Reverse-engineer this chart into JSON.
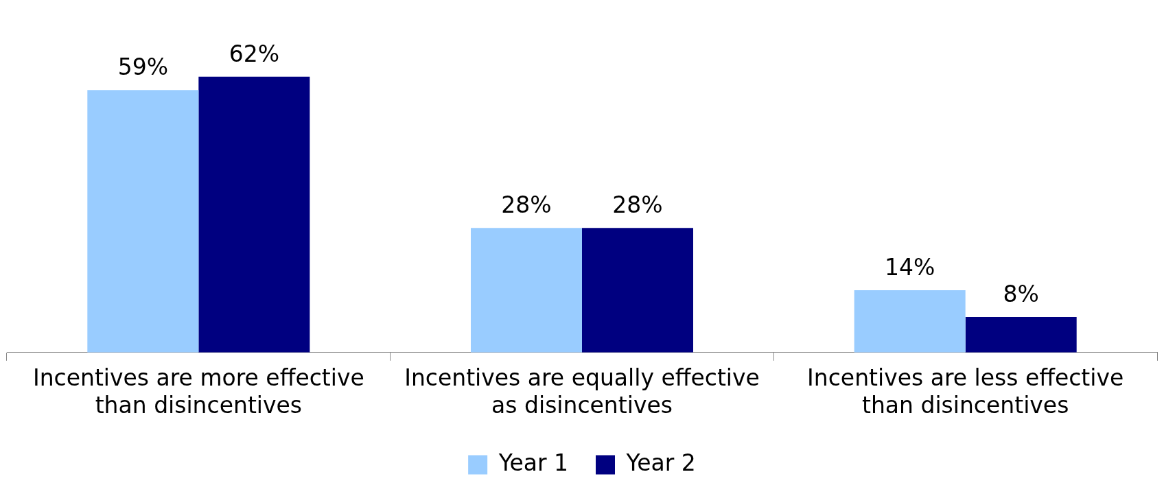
{
  "chart_data": {
    "type": "bar",
    "categories": [
      "Incentives are more effective than disincentives",
      "Incentives are equally effective as disincentives",
      "Incentives are less effective than disincentives"
    ],
    "series": [
      {
        "name": "Year 1",
        "color": "#99ccff",
        "values": [
          59,
          28,
          14
        ],
        "value_labels": [
          "59%",
          "28%",
          "14%"
        ]
      },
      {
        "name": "Year 2",
        "color": "#000080",
        "values": [
          62,
          28,
          8
        ],
        "value_labels": [
          "62%",
          "28%",
          "8%"
        ]
      }
    ],
    "legend": "bottom"
  }
}
